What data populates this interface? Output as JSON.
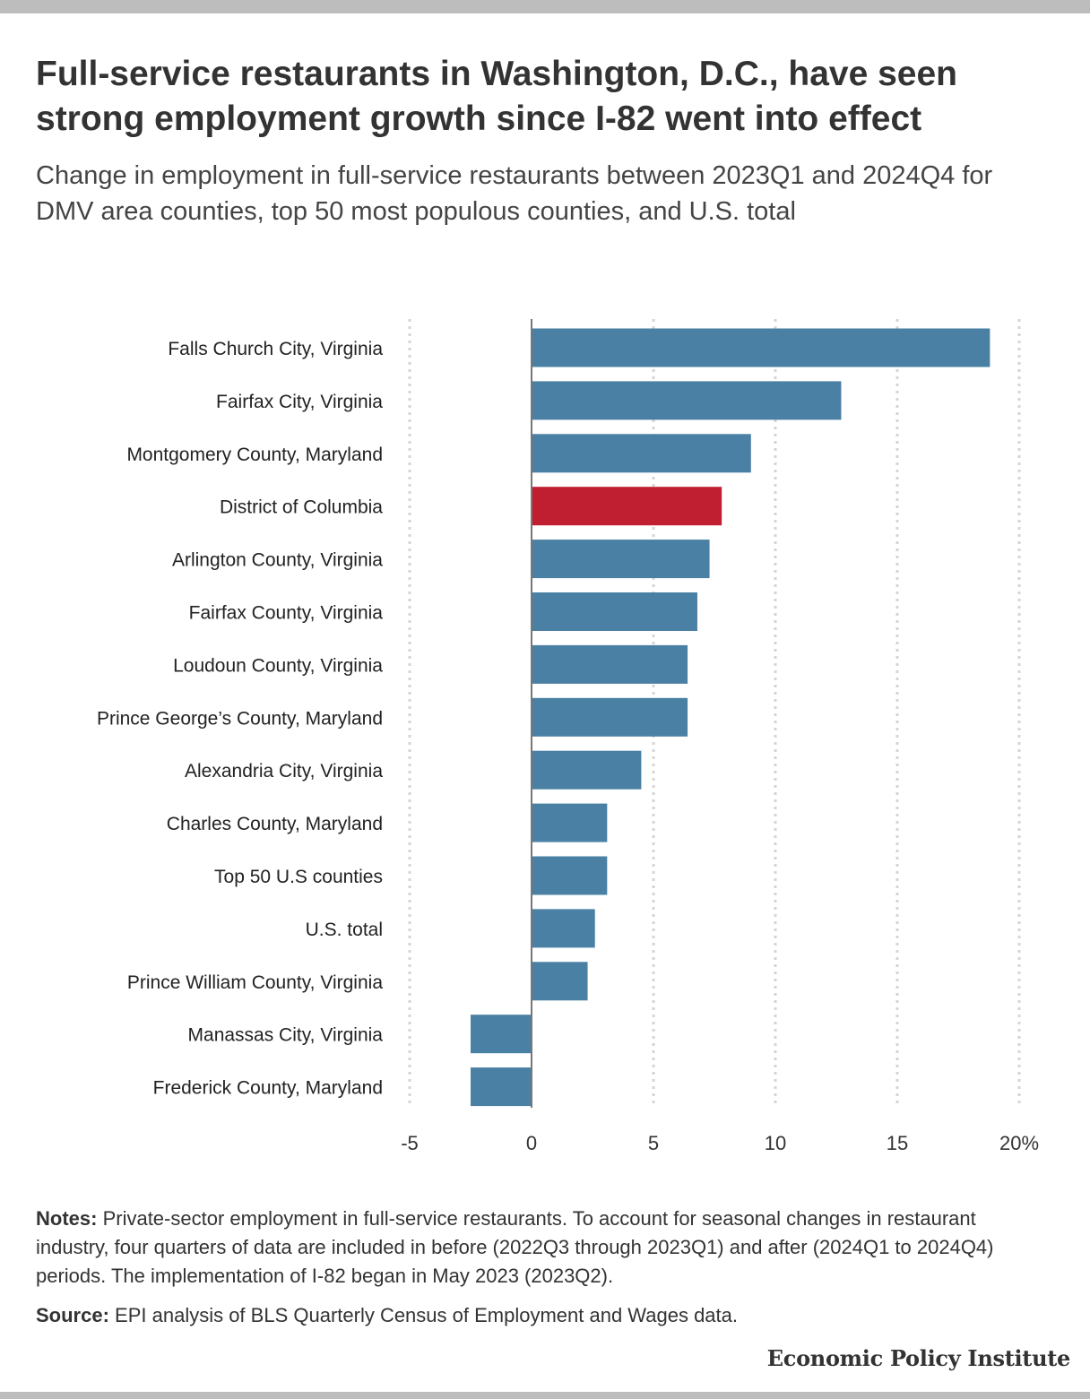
{
  "header": {
    "title": "Full-service restaurants in Washington, D.C., have seen strong employment growth since I-82 went into effect",
    "subtitle": "Change in employment in full-service restaurants between 2023Q1 and 2024Q4 for DMV area counties, top 50 most populous counties, and U.S. total"
  },
  "chart_data": {
    "type": "bar",
    "orientation": "horizontal",
    "categories": [
      "Falls Church City, Virginia",
      "Fairfax City, Virginia",
      "Montgomery County, Maryland",
      "District of Columbia",
      "Arlington County, Virginia",
      "Fairfax County, Virginia",
      "Loudoun County, Virginia",
      "Prince George’s County, Maryland",
      "Alexandria City, Virginia",
      "Charles County, Maryland",
      "Top 50 U.S counties",
      "U.S. total",
      "Prince William County, Virginia",
      "Manassas City, Virginia",
      "Frederick County, Maryland"
    ],
    "values": [
      18.8,
      12.7,
      9.0,
      7.8,
      7.3,
      6.8,
      6.4,
      6.4,
      4.5,
      3.1,
      3.1,
      2.6,
      2.3,
      -2.5,
      -2.5
    ],
    "highlight": "District of Columbia",
    "colors": {
      "default": "#4a80a3",
      "highlight": "#c01f31",
      "grid": "#d4d4d4",
      "axis": "#777777"
    },
    "xlim": [
      -5,
      20
    ],
    "xticks": [
      -5,
      0,
      5,
      10,
      15,
      20
    ],
    "xtick_labels": [
      "-5",
      "0",
      "5",
      "10",
      "15",
      "20%"
    ],
    "grid": "vertical dotted",
    "xlabel": "",
    "ylabel": ""
  },
  "footer": {
    "notes_lead": "Notes:",
    "notes_text": " Private-sector employment in full-service restaurants. To account for seasonal changes in restaurant industry, four quarters of data are included in before (2022Q3 through 2023Q1) and after (2024Q1 to 2024Q4) periods. The implementation of I-82 began in May 2023 (2023Q2).",
    "source_lead": "Source:",
    "source_text": " EPI analysis of BLS Quarterly Census of Employment and Wages data.",
    "brand": "Economic Policy Institute"
  }
}
